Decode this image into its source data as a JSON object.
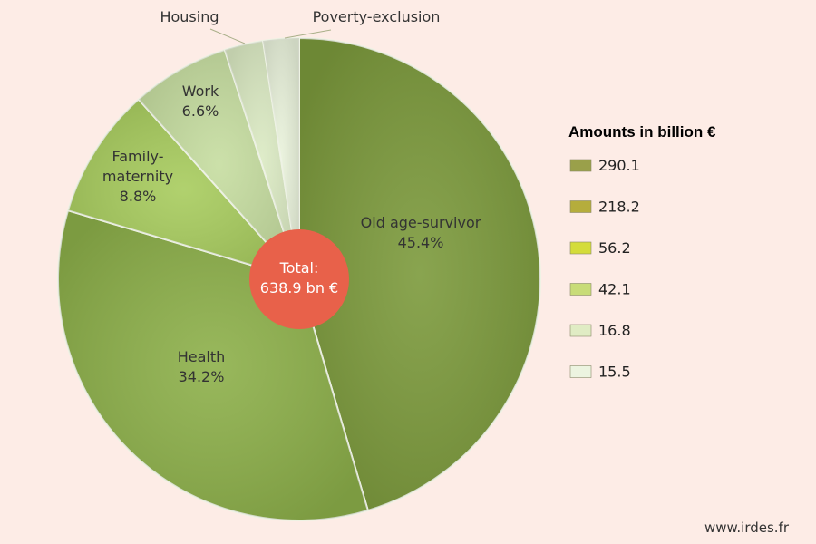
{
  "chart_data": {
    "type": "pie",
    "legend_title": "Amounts in billion €",
    "legend_placement": "right",
    "center_label": [
      "Total:",
      "638.9 bn €"
    ],
    "slices": [
      {
        "label": "Old age-survivor",
        "percent": 45.4,
        "value": "290.1",
        "color": "#7c9a3c",
        "label_lines": [
          "Old age-survivor",
          "45.4%"
        ]
      },
      {
        "label": "Health",
        "percent": 34.2,
        "value": "218.2",
        "color": "#8db04a",
        "label_lines": [
          "Health",
          "34.2%"
        ]
      },
      {
        "label": "Family-maternity",
        "percent": 8.8,
        "value": "56.2",
        "color": "#a8cc5e",
        "label_lines": [
          "Family-",
          "maternity",
          "8.8%"
        ]
      },
      {
        "label": "Work",
        "percent": 6.6,
        "value": "42.1",
        "color": "#c6dda0",
        "label_lines": [
          "Work",
          "6.6%"
        ]
      },
      {
        "label": "Housing",
        "percent": 2.6,
        "value": "16.8",
        "color": "#dbeac3",
        "outer_label": "Housing"
      },
      {
        "label": "Poverty-exclusion",
        "percent": 2.4,
        "value": "15.5",
        "color": "#e9f2db",
        "outer_label": "Poverty-exclusion"
      }
    ],
    "legend_swatch_colors": [
      "#9aa04a",
      "#b5ad3c",
      "#d4dc3a",
      "#c8dc78",
      "#e0ecc4",
      "#ecf4e0"
    ]
  },
  "source": "www.irdes.fr"
}
